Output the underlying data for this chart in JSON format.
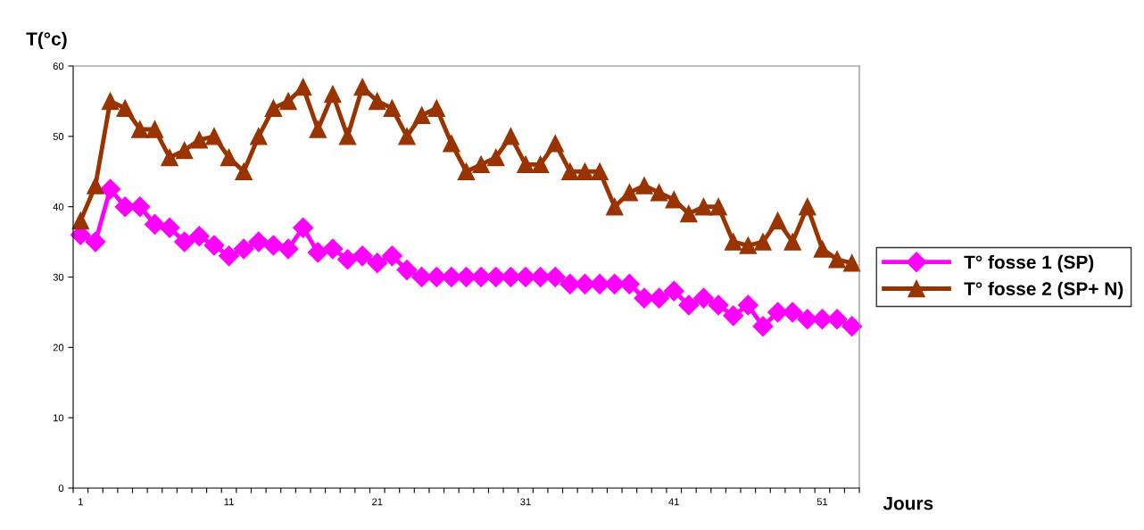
{
  "chart_data": {
    "type": "line",
    "ylabel": "T(°c)",
    "xlabel": "Jours",
    "categories": [
      "1",
      null,
      null,
      null,
      null,
      null,
      null,
      null,
      null,
      null,
      "11",
      null,
      null,
      null,
      null,
      null,
      null,
      null,
      null,
      null,
      "21",
      null,
      null,
      null,
      null,
      null,
      null,
      null,
      null,
      null,
      "31",
      null,
      null,
      null,
      null,
      null,
      null,
      null,
      null,
      null,
      "41",
      null,
      null,
      null,
      null,
      null,
      null,
      null,
      null,
      null,
      "51",
      null,
      null
    ],
    "series": [
      {
        "name": "T° fosse 1 (SP)",
        "color": "#ff00ff",
        "marker": "diamond",
        "values": [
          36,
          35,
          42.5,
          40,
          40,
          37.5,
          37,
          35,
          35.8,
          34.5,
          33,
          34,
          35,
          34.5,
          34,
          37,
          33.5,
          34,
          32.5,
          33,
          32,
          33,
          31,
          30,
          30,
          30,
          30,
          30,
          30,
          30,
          30,
          30,
          30,
          29,
          29,
          29,
          29,
          29,
          27,
          27,
          28,
          26,
          27,
          26,
          24.5,
          26,
          23,
          25,
          25,
          24,
          24,
          24,
          23
        ]
      },
      {
        "name": "T° fosse 2 (SP+ N)",
        "color": "#993300",
        "marker": "triangle",
        "values": [
          38,
          43,
          55,
          54,
          51,
          51,
          47,
          48,
          49.5,
          50,
          47,
          45,
          50,
          54,
          55,
          57,
          51,
          56,
          50,
          57,
          55,
          54,
          50,
          53,
          54,
          49,
          45,
          46,
          47,
          50,
          46,
          46,
          49,
          45,
          45,
          45,
          40,
          42,
          43,
          42,
          41,
          39,
          40,
          40,
          35,
          34.5,
          35,
          38,
          35,
          40,
          34,
          32.5,
          32
        ]
      }
    ],
    "ylim": [
      0,
      60
    ],
    "yticks": [
      0,
      10,
      20,
      30,
      40,
      50,
      60
    ],
    "grid": false,
    "legend": "right"
  }
}
